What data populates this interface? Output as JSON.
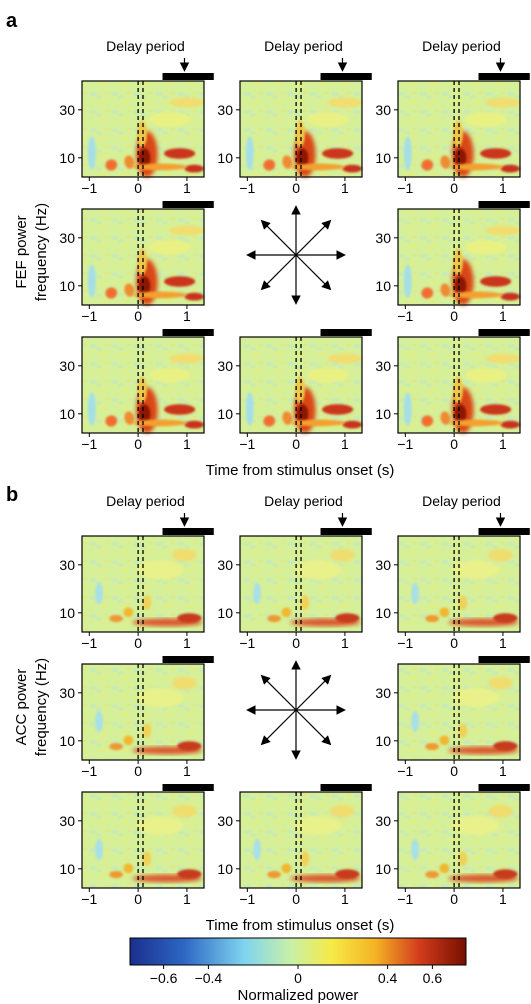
{
  "panel_labels": {
    "a": "a",
    "b": "b"
  },
  "chart_data": [
    {
      "type": "heatmap",
      "panel": "a",
      "delay_label": "Delay period",
      "ylabel_line1": "FEF power",
      "ylabel_line2": "frequency (Hz)",
      "xlabel": "Time from stimulus onset (s)",
      "x_ticks": [
        "−1",
        "0",
        "1"
      ],
      "y_ticks": [
        "30",
        "10"
      ],
      "xlim": [
        -1.15,
        1.35
      ],
      "ylim": [
        2,
        42
      ],
      "center_arrow_directions": 8
    },
    {
      "type": "heatmap",
      "panel": "b",
      "delay_label": "Delay period",
      "ylabel_line1": "ACC power",
      "ylabel_line2": "frequency (Hz)",
      "xlabel": "Time from stimulus onset (s)",
      "x_ticks": [
        "−1",
        "0",
        "1"
      ],
      "y_ticks": [
        "30",
        "10"
      ],
      "xlim": [
        -1.15,
        1.35
      ],
      "ylim": [
        2,
        42
      ],
      "center_arrow_directions": 8
    }
  ],
  "colorbar": {
    "label": "Normalized power",
    "ticks": [
      "−0.6",
      "−0.4",
      "0",
      "0.4",
      "0.6"
    ],
    "tick_values": [
      -0.6,
      -0.4,
      0,
      0.4,
      0.6
    ],
    "range": [
      -0.75,
      0.75
    ],
    "colors": [
      "#1b2f8d",
      "#2d66c4",
      "#7fd4ef",
      "#c9f0a7",
      "#f6ea47",
      "#f4b324",
      "#d33c1d",
      "#761000"
    ]
  }
}
